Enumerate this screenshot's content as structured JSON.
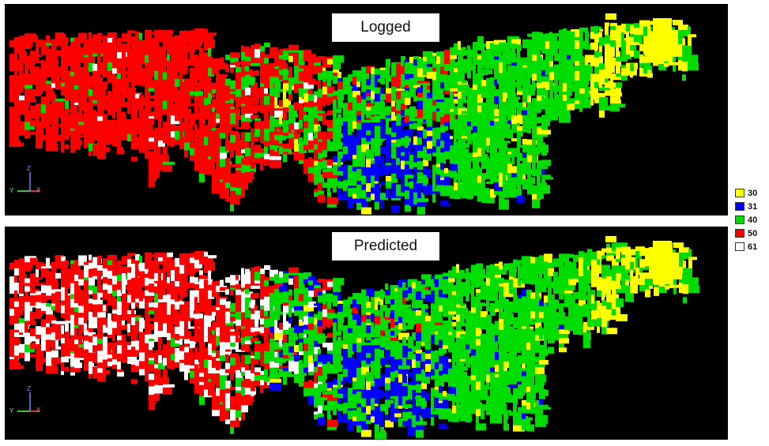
{
  "panels": {
    "top": {
      "label": "Logged"
    },
    "bottom": {
      "label": "Predicted"
    }
  },
  "axes": {
    "z": "Z",
    "y": "Y",
    "x": "X"
  },
  "legend": [
    {
      "label": "30",
      "color": "#ffff00"
    },
    {
      "label": "31",
      "color": "#0000ff"
    },
    {
      "label": "40",
      "color": "#00dd00"
    },
    {
      "label": "50",
      "color": "#ff0000"
    },
    {
      "label": "61",
      "color": "#ffffff"
    }
  ],
  "colors": {
    "background": "#000000",
    "panel_border": "#ffffff"
  }
}
